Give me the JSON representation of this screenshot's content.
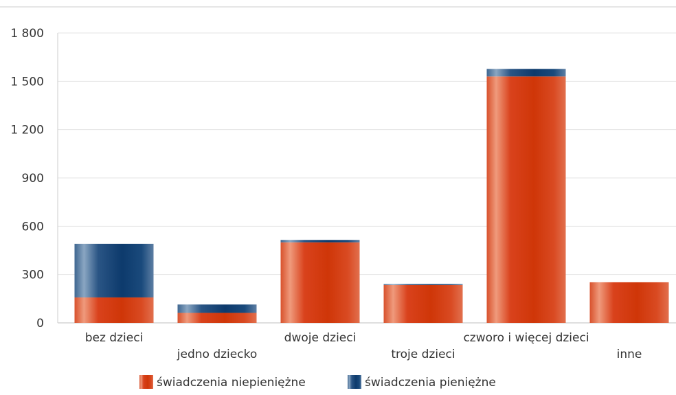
{
  "chart_data": {
    "type": "bar",
    "stacked": true,
    "categories": [
      "bez dzieci",
      "jedno dziecko",
      "dwoje dzieci",
      "troje dzieci",
      "czworo i więcej dzieci",
      "inne"
    ],
    "series": [
      {
        "name": "świadczenia niepieniężne",
        "values": [
          158,
          62,
          500,
          235,
          1530,
          252
        ],
        "color": "#d13a10"
      },
      {
        "name": "świadczenia pieniężne",
        "values": [
          333,
          52,
          15,
          6,
          47,
          0
        ],
        "color": "#0f3e72"
      }
    ],
    "yticks": [
      0,
      300,
      600,
      900,
      1200,
      1500,
      1800
    ],
    "ytick_labels": [
      "0",
      "300",
      "600",
      "900",
      "1 200",
      "1 500",
      "1 800"
    ],
    "ylim": [
      0,
      1800
    ],
    "grid": true,
    "legend_position": "bottom-center"
  }
}
